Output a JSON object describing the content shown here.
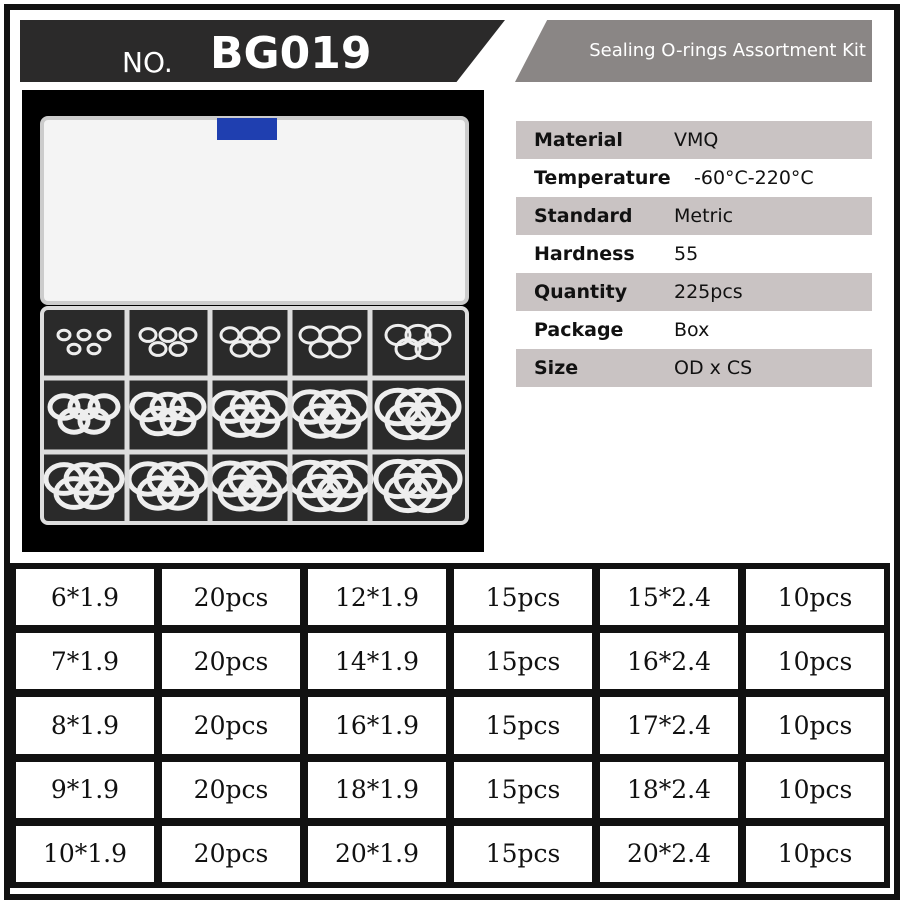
{
  "header": {
    "prefix": "NO.",
    "code": "BG019",
    "subtitle": "Sealing O-rings Assortment Kit"
  },
  "colors": {
    "title_bar": "#2b2a2a",
    "subtitle_bar": "#8a8685",
    "spec_shade": "#c9c3c3",
    "lid_clip": "#1f3fb0"
  },
  "specs": [
    {
      "label": "Material",
      "value": "VMQ"
    },
    {
      "label": "Temperature",
      "value": "-60°C-220°C"
    },
    {
      "label": "Standard",
      "value": "Metric"
    },
    {
      "label": "Hardness",
      "value": "55"
    },
    {
      "label": "Quantity",
      "value": "225pcs"
    },
    {
      "label": "Package",
      "value": "Box"
    },
    {
      "label": "Size",
      "value": "OD x CS"
    }
  ],
  "sizes": [
    [
      "6*1.9",
      "20pcs",
      "12*1.9",
      "15pcs",
      "15*2.4",
      "10pcs"
    ],
    [
      "7*1.9",
      "20pcs",
      "14*1.9",
      "15pcs",
      "16*2.4",
      "10pcs"
    ],
    [
      "8*1.9",
      "20pcs",
      "16*1.9",
      "15pcs",
      "17*2.4",
      "10pcs"
    ],
    [
      "9*1.9",
      "20pcs",
      "18*1.9",
      "15pcs",
      "18*2.4",
      "10pcs"
    ],
    [
      "10*1.9",
      "20pcs",
      "20*1.9",
      "15pcs",
      "20*2.4",
      "10pcs"
    ]
  ]
}
